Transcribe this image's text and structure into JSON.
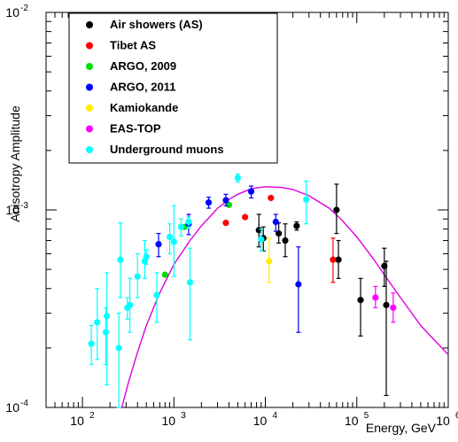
{
  "chart_data": {
    "type": "scatter",
    "xlabel": "Energy, GeV",
    "ylabel": "Anisotropy Amplitude",
    "x_scale": "log",
    "y_scale": "log",
    "xlim": [
      40,
      1000000
    ],
    "ylim": [
      0.0001,
      0.01
    ],
    "grid": false,
    "legend_placement": "top-left",
    "x_tick_labels": [
      "10",
      "10",
      "10",
      "10",
      "10"
    ],
    "x_tick_exponents": [
      "2",
      "3",
      "4",
      "5",
      "6"
    ],
    "y_tick_labels": [
      "10",
      "10",
      "10"
    ],
    "y_tick_exponents": [
      "-4",
      "-3",
      "-2"
    ],
    "series": [
      {
        "name": "Air showers (AS)",
        "color": "#000000",
        "points": [
          {
            "x": 8500,
            "y": 0.00079,
            "lo": 0.00065,
            "hi": 0.00095
          },
          {
            "x": 9500,
            "y": 0.00072,
            "lo": 0.00062,
            "hi": 0.00082
          },
          {
            "x": 14000,
            "y": 0.00076,
            "lo": 0.00068,
            "hi": 0.00086
          },
          {
            "x": 16500,
            "y": 0.0007,
            "lo": 0.00058,
            "hi": 0.00085
          },
          {
            "x": 22000,
            "y": 0.00083,
            "lo": 0.00079,
            "hi": 0.00087
          },
          {
            "x": 60000,
            "y": 0.001,
            "lo": 0.00076,
            "hi": 0.00135
          },
          {
            "x": 63000,
            "y": 0.00056,
            "lo": 0.00045,
            "hi": 0.0007
          },
          {
            "x": 110000,
            "y": 0.00035,
            "lo": 0.00023,
            "hi": 0.00045
          },
          {
            "x": 200000,
            "y": 0.00052,
            "lo": 0.00041,
            "hi": 0.00064
          },
          {
            "x": 210000,
            "y": 0.00033,
            "lo": 0.000115,
            "hi": 0.00055
          }
        ]
      },
      {
        "name": "Tibet AS",
        "color": "#ff0000",
        "points": [
          {
            "x": 3700,
            "y": 0.00086,
            "lo": 0.00086,
            "hi": 0.00086
          },
          {
            "x": 6000,
            "y": 0.00092,
            "lo": 0.00092,
            "hi": 0.00092
          },
          {
            "x": 11500,
            "y": 0.00115,
            "lo": 0.00115,
            "hi": 0.00115
          },
          {
            "x": 55000,
            "y": 0.00056,
            "lo": 0.00043,
            "hi": 0.00072
          }
        ]
      },
      {
        "name": "ARGO, 2009",
        "color": "#00dd00",
        "points": [
          {
            "x": 800,
            "y": 0.00047,
            "lo": 0.00047,
            "hi": 0.00047
          },
          {
            "x": 1300,
            "y": 0.00082,
            "lo": 0.00082,
            "hi": 0.00082
          },
          {
            "x": 4000,
            "y": 0.00106,
            "lo": 0.00106,
            "hi": 0.00106
          }
        ]
      },
      {
        "name": "ARGO, 2011",
        "color": "#0000ff",
        "points": [
          {
            "x": 680,
            "y": 0.00067,
            "lo": 0.00058,
            "hi": 0.00076
          },
          {
            "x": 1450,
            "y": 0.00085,
            "lo": 0.00075,
            "hi": 0.00095
          },
          {
            "x": 2400,
            "y": 0.00109,
            "lo": 0.00102,
            "hi": 0.00116
          },
          {
            "x": 3700,
            "y": 0.00112,
            "lo": 0.00105,
            "hi": 0.0012
          },
          {
            "x": 7000,
            "y": 0.00124,
            "lo": 0.00115,
            "hi": 0.00132
          },
          {
            "x": 13000,
            "y": 0.00087,
            "lo": 0.00078,
            "hi": 0.00095
          },
          {
            "x": 23000,
            "y": 0.00042,
            "lo": 0.00024,
            "hi": 0.00065
          }
        ]
      },
      {
        "name": "Kamiokande",
        "color": "#ffee00",
        "points": [
          {
            "x": 11000,
            "y": 0.00055,
            "lo": 0.00043,
            "hi": 0.00072
          }
        ]
      },
      {
        "name": "EAS-TOP",
        "color": "#ff00ff",
        "points": [
          {
            "x": 160000,
            "y": 0.00036,
            "lo": 0.00032,
            "hi": 0.00041
          },
          {
            "x": 250000,
            "y": 0.00032,
            "lo": 0.00027,
            "hi": 0.00038
          }
        ]
      },
      {
        "name": "Underground muons",
        "color": "#00ffff",
        "points": [
          {
            "x": 125,
            "y": 0.00021,
            "lo": 0.000165,
            "hi": 0.00026
          },
          {
            "x": 145,
            "y": 0.00027,
            "lo": 0.000175,
            "hi": 0.0004
          },
          {
            "x": 180,
            "y": 0.00024,
            "lo": 0.000165,
            "hi": 0.00032
          },
          {
            "x": 185,
            "y": 0.00029,
            "lo": 0.00013,
            "hi": 0.00048
          },
          {
            "x": 250,
            "y": 0.0002,
            "lo": 0.0001,
            "hi": 0.0003
          },
          {
            "x": 260,
            "y": 0.00056,
            "lo": 0.00036,
            "hi": 0.00086
          },
          {
            "x": 310,
            "y": 0.00032,
            "lo": 0.00028,
            "hi": 0.00036
          },
          {
            "x": 330,
            "y": 0.00033,
            "lo": 0.00024,
            "hi": 0.00045
          },
          {
            "x": 400,
            "y": 0.00046,
            "lo": 0.00036,
            "hi": 0.0006
          },
          {
            "x": 480,
            "y": 0.00055,
            "lo": 0.00045,
            "hi": 0.0007
          },
          {
            "x": 500,
            "y": 0.00058,
            "lo": 0.00053,
            "hi": 0.00063
          },
          {
            "x": 650,
            "y": 0.00037,
            "lo": 0.00027,
            "hi": 0.00048
          },
          {
            "x": 900,
            "y": 0.00073,
            "lo": 0.0006,
            "hi": 0.00085
          },
          {
            "x": 1000,
            "y": 0.00069,
            "lo": 0.00046,
            "hi": 0.00105
          },
          {
            "x": 1200,
            "y": 0.00082,
            "lo": 0.00074,
            "hi": 0.0009
          },
          {
            "x": 1450,
            "y": 0.00087,
            "lo": 0.00081,
            "hi": 0.00092
          },
          {
            "x": 1500,
            "y": 0.00043,
            "lo": 0.00022,
            "hi": 0.00064
          },
          {
            "x": 5000,
            "y": 0.00145,
            "lo": 0.00138,
            "hi": 0.00152
          },
          {
            "x": 9000,
            "y": 0.00071,
            "lo": 0.00062,
            "hi": 0.0008
          },
          {
            "x": 28000,
            "y": 0.00113,
            "lo": 0.00085,
            "hi": 0.0014
          }
        ]
      }
    ],
    "model_curve": {
      "color": "#dd00dd",
      "points": [
        [
          270,
          0.0001
        ],
        [
          320,
          0.000135
        ],
        [
          400,
          0.00019
        ],
        [
          500,
          0.00026
        ],
        [
          700,
          0.00038
        ],
        [
          1000,
          0.00053
        ],
        [
          1500,
          0.0007
        ],
        [
          2000,
          0.00083
        ],
        [
          3000,
          0.00102
        ],
        [
          4000,
          0.00113
        ],
        [
          5000,
          0.0012
        ],
        [
          7000,
          0.00128
        ],
        [
          10000,
          0.00131
        ],
        [
          15000,
          0.0013
        ],
        [
          20000,
          0.00127
        ],
        [
          30000,
          0.00118
        ],
        [
          50000,
          0.00102
        ],
        [
          70000,
          0.00088
        ],
        [
          100000,
          0.00073
        ],
        [
          150000,
          0.00057
        ],
        [
          200000,
          0.00047
        ],
        [
          300000,
          0.00036
        ],
        [
          400000,
          0.0003
        ],
        [
          500000,
          0.00026
        ],
        [
          700000,
          0.00022
        ],
        [
          1000000,
          0.000185
        ]
      ]
    }
  }
}
